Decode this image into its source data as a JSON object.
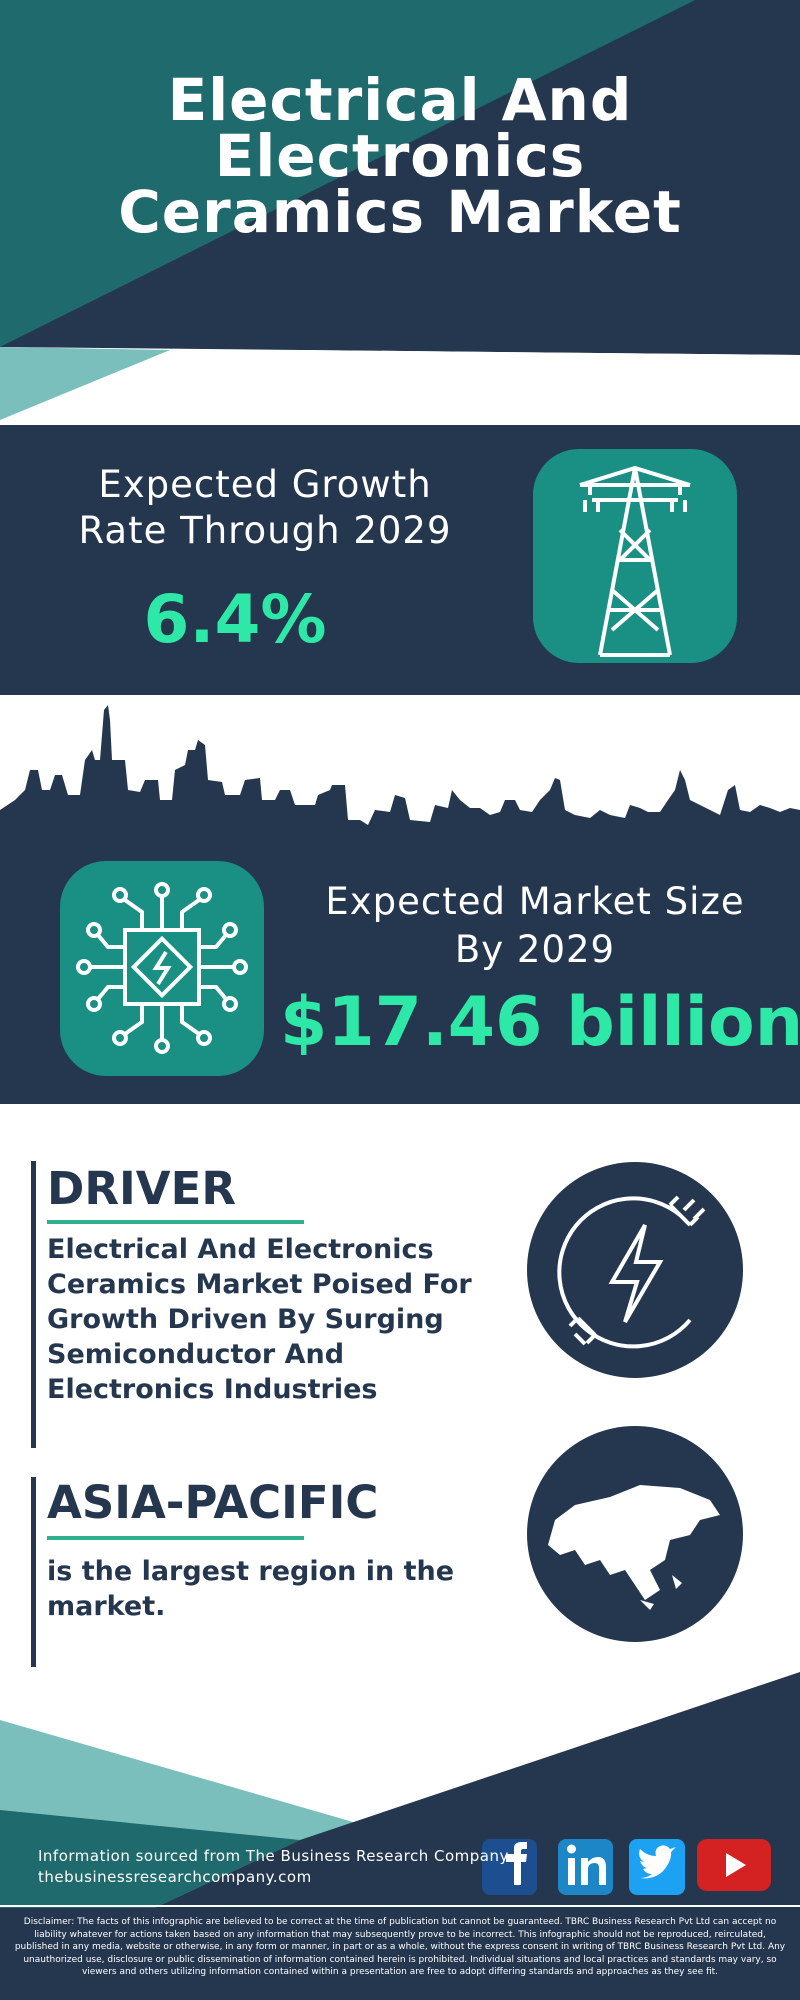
{
  "header": {
    "title": "Electrical And Electronics Ceramics Market"
  },
  "growth": {
    "label": "Expected Growth Rate Through 2029",
    "value": "6.4%"
  },
  "market_size": {
    "label": "Expected Market Size By 2029",
    "value": "$17.46 billion"
  },
  "driver": {
    "heading": "DRIVER",
    "text": "Electrical And Electronics Ceramics Market Poised For Growth Driven By Surging Semiconductor And Electronics Industries"
  },
  "region": {
    "heading": "ASIA-PACIFIC",
    "text": "is the largest region in the market."
  },
  "footer": {
    "source": "Information sourced from The Business Research Company",
    "website": "thebusinessresearchcompany.com",
    "disclaimer": "Disclaimer: The facts of this infographic are believed to be correct at the time of publication but cannot be guaranteed. TBRC Business Research Pvt Ltd can accept no liability whatever for actions taken based on any information that may subsequently prove to be incorrect. This infographic should not be reproduced, reirculated, published in any media, website or otherwise, in any form or manner, in part or as a whole, without the express consent in writing of TBRC Business Research Pvt Ltd. Any unauthorized use, disclosure or public dissemination of information contained herein is prohibited. Individual situations and local practices and standards may vary, so viewers and others utilizing information contained within a presentation are free to adopt differing standards and approaches as they see fit."
  }
}
